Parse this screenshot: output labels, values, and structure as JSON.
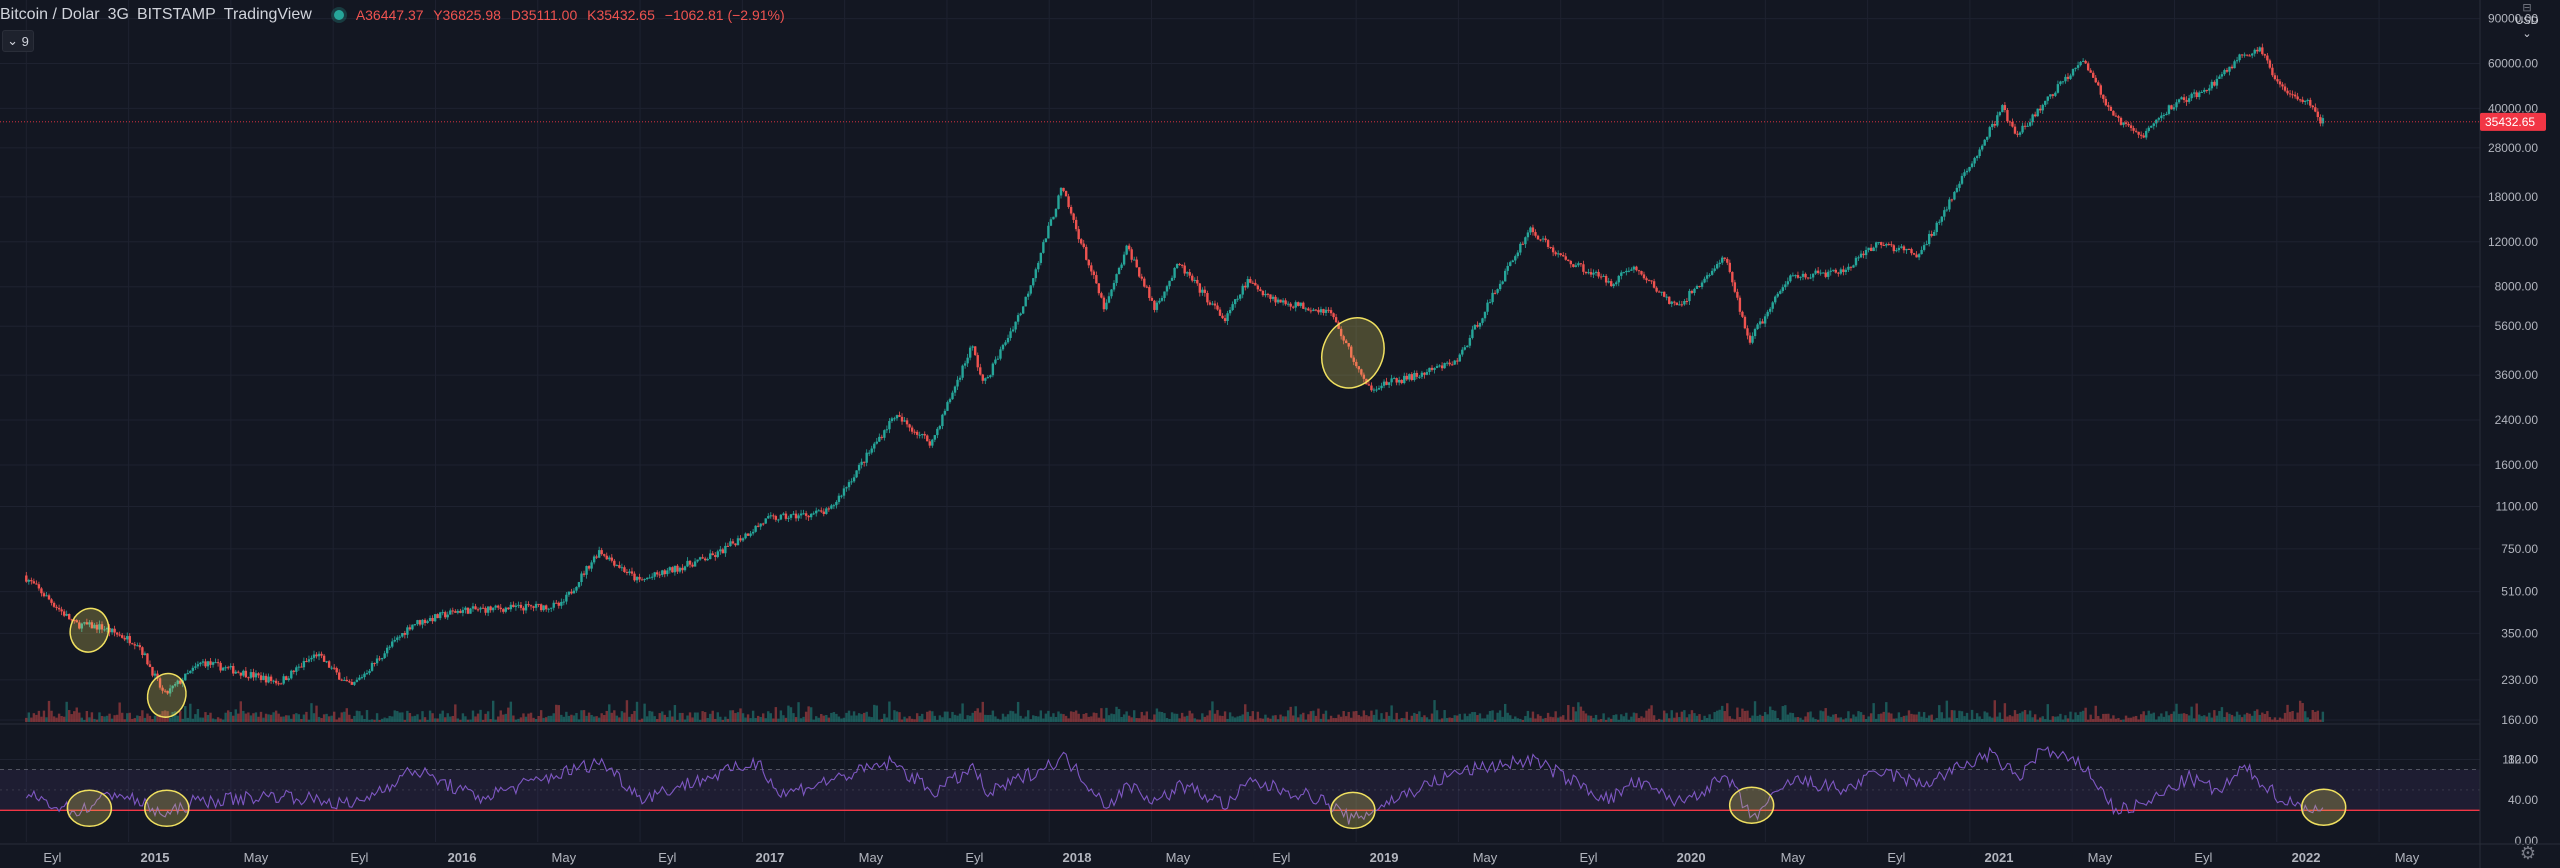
{
  "header": {
    "symbol": "Bitcoin / Dolar",
    "interval": "3G",
    "exchange": "BITSTAMP",
    "source": "TradingView",
    "open": "A36447.37",
    "high": "Y36825.98",
    "low": "D35111.00",
    "close": "K35432.65",
    "change": "−1062.81 (−2.91%)"
  },
  "indicator_toggle": "9",
  "currency": "USD",
  "price_scale_labels": [
    "90000.00",
    "60000.00",
    "40000.00",
    "28000.00",
    "18000.00",
    "12000.00",
    "8000.00",
    "5600.00",
    "3600.00",
    "2400.00",
    "1600.00",
    "1100.00",
    "750.00",
    "510.00",
    "350.00",
    "230.00",
    "160.00",
    "112.00"
  ],
  "last_price_label": "35432.65",
  "rsi_scale_labels": [
    "80.00",
    "40.00",
    "0.00"
  ],
  "time_labels": [
    "Eyl",
    "2015",
    "May",
    "Eyl",
    "2016",
    "May",
    "Eyl",
    "2017",
    "May",
    "Eyl",
    "2018",
    "May",
    "Eyl",
    "2019",
    "May",
    "Eyl",
    "2020",
    "May",
    "Eyl",
    "2021",
    "May",
    "Eyl",
    "2022",
    "May"
  ],
  "colors": {
    "background": "#131722",
    "up": "#26a69a",
    "down": "#ef5350",
    "rsi_line": "#7e57c2",
    "rsi_band": "#7e57c2",
    "rsi_oversold_line": "#f23645",
    "highlight_ellipse": "#f0e060",
    "last_price": "#f23645"
  },
  "chart_data": {
    "type": "candlestick",
    "scale": "log",
    "x_range": [
      "2014-08",
      "2022-06"
    ],
    "y_range": [
      90,
      100000
    ],
    "price_anchors": [
      {
        "date": "2014-08-01",
        "price": 590
      },
      {
        "date": "2014-10-01",
        "price": 380
      },
      {
        "date": "2014-11-01",
        "price": 370
      },
      {
        "date": "2014-12-15",
        "price": 320
      },
      {
        "date": "2015-01-15",
        "price": 200
      },
      {
        "date": "2015-03-01",
        "price": 270
      },
      {
        "date": "2015-06-01",
        "price": 225
      },
      {
        "date": "2015-07-15",
        "price": 290
      },
      {
        "date": "2015-08-25",
        "price": 215
      },
      {
        "date": "2015-11-05",
        "price": 380
      },
      {
        "date": "2016-01-01",
        "price": 430
      },
      {
        "date": "2016-05-01",
        "price": 450
      },
      {
        "date": "2016-06-15",
        "price": 740
      },
      {
        "date": "2016-08-01",
        "price": 560
      },
      {
        "date": "2016-11-01",
        "price": 710
      },
      {
        "date": "2017-01-01",
        "price": 980
      },
      {
        "date": "2017-03-15",
        "price": 1050
      },
      {
        "date": "2017-06-01",
        "price": 2500
      },
      {
        "date": "2017-07-15",
        "price": 1950
      },
      {
        "date": "2017-09-01",
        "price": 4700
      },
      {
        "date": "2017-09-15",
        "price": 3300
      },
      {
        "date": "2017-11-01",
        "price": 6700
      },
      {
        "date": "2017-12-17",
        "price": 19500
      },
      {
        "date": "2018-02-06",
        "price": 6500
      },
      {
        "date": "2018-03-05",
        "price": 11500
      },
      {
        "date": "2018-04-06",
        "price": 6600
      },
      {
        "date": "2018-05-05",
        "price": 9800
      },
      {
        "date": "2018-06-29",
        "price": 5900
      },
      {
        "date": "2018-07-25",
        "price": 8400
      },
      {
        "date": "2018-09-01",
        "price": 7000
      },
      {
        "date": "2018-11-01",
        "price": 6400
      },
      {
        "date": "2018-12-15",
        "price": 3200
      },
      {
        "date": "2019-02-15",
        "price": 3600
      },
      {
        "date": "2019-04-01",
        "price": 4100
      },
      {
        "date": "2019-06-26",
        "price": 13500
      },
      {
        "date": "2019-08-01",
        "price": 10500
      },
      {
        "date": "2019-10-01",
        "price": 8300
      },
      {
        "date": "2019-10-26",
        "price": 9600
      },
      {
        "date": "2019-12-18",
        "price": 6600
      },
      {
        "date": "2020-02-13",
        "price": 10400
      },
      {
        "date": "2020-03-13",
        "price": 4900
      },
      {
        "date": "2020-05-01",
        "price": 8800
      },
      {
        "date": "2020-07-01",
        "price": 9100
      },
      {
        "date": "2020-08-15",
        "price": 11900
      },
      {
        "date": "2020-10-01",
        "price": 10600
      },
      {
        "date": "2021-01-08",
        "price": 40000
      },
      {
        "date": "2021-01-25",
        "price": 31000
      },
      {
        "date": "2021-04-14",
        "price": 63500
      },
      {
        "date": "2021-05-19",
        "price": 37000
      },
      {
        "date": "2021-06-22",
        "price": 31000
      },
      {
        "date": "2021-08-01",
        "price": 42000
      },
      {
        "date": "2021-09-07",
        "price": 47000
      },
      {
        "date": "2021-10-20",
        "price": 65000
      },
      {
        "date": "2021-11-10",
        "price": 67500
      },
      {
        "date": "2021-12-04",
        "price": 49000
      },
      {
        "date": "2022-01-10",
        "price": 42000
      },
      {
        "date": "2022-01-22",
        "price": 35432.65
      }
    ],
    "last_price": 35432.65,
    "rsi": {
      "levels": [
        70,
        30
      ],
      "range": [
        0,
        100
      ],
      "anchors": [
        {
          "date": "2014-08-01",
          "value": 45
        },
        {
          "date": "2014-10-01",
          "value": 28
        },
        {
          "date": "2014-11-15",
          "value": 48
        },
        {
          "date": "2015-01-15",
          "value": 25
        },
        {
          "date": "2015-02-15",
          "value": 38
        },
        {
          "date": "2015-06-01",
          "value": 45
        },
        {
          "date": "2015-08-25",
          "value": 35
        },
        {
          "date": "2015-11-05",
          "value": 70
        },
        {
          "date": "2016-01-20",
          "value": 42
        },
        {
          "date": "2016-06-15",
          "value": 78
        },
        {
          "date": "2016-08-01",
          "value": 42
        },
        {
          "date": "2016-12-20",
          "value": 78
        },
        {
          "date": "2017-01-12",
          "value": 45
        },
        {
          "date": "2017-05-25",
          "value": 77
        },
        {
          "date": "2017-07-15",
          "value": 48
        },
        {
          "date": "2017-09-01",
          "value": 72
        },
        {
          "date": "2017-09-15",
          "value": 45
        },
        {
          "date": "2017-12-17",
          "value": 82
        },
        {
          "date": "2018-02-06",
          "value": 35
        },
        {
          "date": "2018-03-05",
          "value": 55
        },
        {
          "date": "2018-04-06",
          "value": 38
        },
        {
          "date": "2018-05-05",
          "value": 55
        },
        {
          "date": "2018-06-29",
          "value": 35
        },
        {
          "date": "2018-07-25",
          "value": 58
        },
        {
          "date": "2018-10-15",
          "value": 42
        },
        {
          "date": "2018-11-25",
          "value": 20
        },
        {
          "date": "2019-01-15",
          "value": 42
        },
        {
          "date": "2019-04-01",
          "value": 68
        },
        {
          "date": "2019-06-26",
          "value": 80
        },
        {
          "date": "2019-09-25",
          "value": 40
        },
        {
          "date": "2019-10-26",
          "value": 58
        },
        {
          "date": "2019-12-18",
          "value": 38
        },
        {
          "date": "2020-02-13",
          "value": 62
        },
        {
          "date": "2020-03-13",
          "value": 22
        },
        {
          "date": "2020-05-01",
          "value": 60
        },
        {
          "date": "2020-07-01",
          "value": 50
        },
        {
          "date": "2020-08-15",
          "value": 68
        },
        {
          "date": "2020-10-01",
          "value": 55
        },
        {
          "date": "2020-12-20",
          "value": 85
        },
        {
          "date": "2021-01-25",
          "value": 62
        },
        {
          "date": "2021-02-20",
          "value": 90
        },
        {
          "date": "2021-04-14",
          "value": 72
        },
        {
          "date": "2021-05-19",
          "value": 30
        },
        {
          "date": "2021-06-22",
          "value": 35
        },
        {
          "date": "2021-08-15",
          "value": 62
        },
        {
          "date": "2021-09-20",
          "value": 48
        },
        {
          "date": "2021-10-20",
          "value": 72
        },
        {
          "date": "2021-12-04",
          "value": 40
        },
        {
          "date": "2022-01-22",
          "value": 28
        }
      ]
    },
    "highlighted_zones": [
      {
        "date": "2014-10-15",
        "price": 360,
        "rsi": 32
      },
      {
        "date": "2015-01-15",
        "price": 200,
        "rsi": 32
      },
      {
        "date": "2018-11-25",
        "price": 4400,
        "rsi": 30
      },
      {
        "date": "2020-03-13",
        "rsi": 35
      },
      {
        "date": "2022-01-22",
        "rsi": 33
      }
    ]
  }
}
